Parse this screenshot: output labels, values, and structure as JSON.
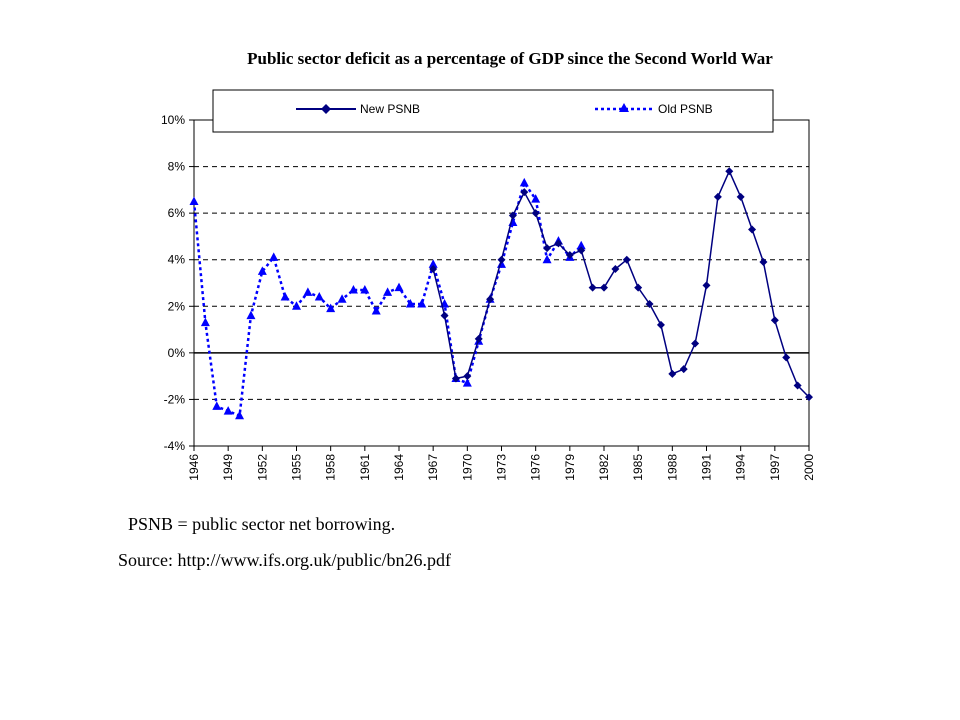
{
  "chart_data": {
    "type": "line",
    "title": "Public sector deficit as a percentage of GDP since the Second World War",
    "xlabel": "",
    "ylabel": "",
    "xlim": [
      1946,
      2000
    ],
    "ylim": [
      -4,
      10
    ],
    "x_ticks": [
      1946,
      1949,
      1952,
      1955,
      1958,
      1961,
      1964,
      1967,
      1970,
      1973,
      1976,
      1979,
      1982,
      1985,
      1988,
      1991,
      1994,
      1997,
      2000
    ],
    "x_tick_labels": [
      "1946",
      "1949",
      "1952",
      "1955",
      "1958",
      "1961",
      "1964",
      "1967",
      "1970",
      "1973",
      "1976",
      "1979",
      "1982",
      "1985",
      "1988",
      "1991",
      "1994",
      "1997",
      "2000"
    ],
    "y_ticks": [
      -4,
      -2,
      0,
      2,
      4,
      6,
      8,
      10
    ],
    "y_tick_labels": [
      "-4%",
      "-2%",
      "0%",
      "2%",
      "4%",
      "6%",
      "8%",
      "10%"
    ],
    "gridlines": "horizontal dashed",
    "legend_position": "top",
    "series": [
      {
        "name": "New PSNB",
        "color": "#000080",
        "style": "solid",
        "marker": "diamond",
        "x": [
          1967,
          1968,
          1969,
          1970,
          1971,
          1972,
          1973,
          1974,
          1975,
          1976,
          1977,
          1978,
          1979,
          1980,
          1981,
          1982,
          1983,
          1984,
          1985,
          1986,
          1987,
          1988,
          1989,
          1990,
          1991,
          1992,
          1993,
          1994,
          1995,
          1996,
          1997,
          1998,
          1999,
          2000
        ],
        "values": [
          3.6,
          1.6,
          -1.1,
          -1.0,
          0.6,
          2.3,
          4.0,
          5.9,
          6.9,
          6.0,
          4.5,
          4.7,
          4.2,
          4.4,
          2.8,
          2.8,
          3.6,
          4.0,
          2.8,
          2.1,
          1.2,
          -0.9,
          -0.7,
          0.4,
          2.9,
          6.7,
          7.8,
          6.7,
          5.3,
          3.9,
          1.4,
          -0.2,
          -1.4,
          -1.9
        ]
      },
      {
        "name": "Old PSNB",
        "color": "#0000ff",
        "style": "dotted",
        "marker": "triangle",
        "x": [
          1946,
          1947,
          1948,
          1949,
          1950,
          1951,
          1952,
          1953,
          1954,
          1955,
          1956,
          1957,
          1958,
          1959,
          1960,
          1961,
          1962,
          1963,
          1964,
          1965,
          1966,
          1967,
          1968,
          1969,
          1970,
          1971,
          1972,
          1973,
          1974,
          1975,
          1976,
          1977,
          1978,
          1979,
          1980
        ],
        "values": [
          6.5,
          1.3,
          -2.3,
          -2.5,
          -2.7,
          1.6,
          3.5,
          4.1,
          2.4,
          2.0,
          2.6,
          2.4,
          1.9,
          2.3,
          2.7,
          2.7,
          1.8,
          2.6,
          2.8,
          2.1,
          2.1,
          3.8,
          2.1,
          -1.1,
          -1.3,
          0.5,
          2.3,
          3.8,
          5.6,
          7.3,
          6.6,
          4.0,
          4.8,
          4.1,
          4.6
        ]
      }
    ]
  },
  "notes": {
    "definition": "PSNB = public sector net borrowing.",
    "source": "Source: http://www.ifs.org.uk/public/bn26.pdf"
  }
}
